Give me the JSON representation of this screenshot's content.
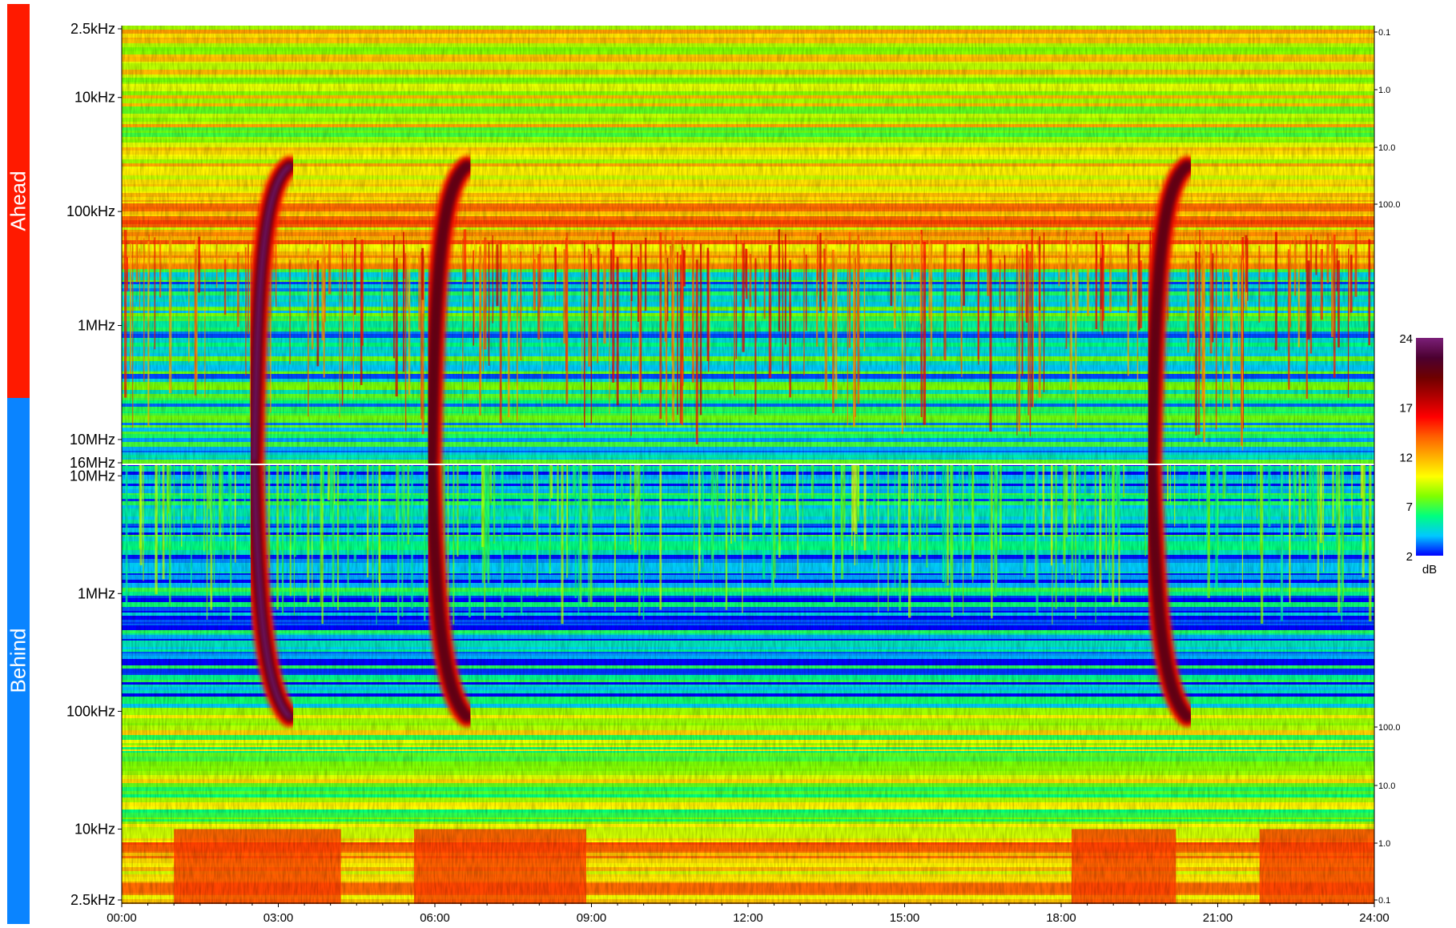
{
  "panels": {
    "ahead": {
      "label": "Ahead",
      "color": "#ff1a00"
    },
    "behind": {
      "label": "Behind",
      "color": "#0a84ff"
    }
  },
  "chart_data": {
    "type": "heatmap",
    "title": "",
    "xlabel": "",
    "ylabel": "",
    "x_ticks": [
      "00:00",
      "03:00",
      "06:00",
      "09:00",
      "12:00",
      "15:00",
      "18:00",
      "21:00",
      "24:00"
    ],
    "x_range_hours": [
      0,
      24
    ],
    "panels": [
      {
        "name": "Ahead",
        "y_ticks": [
          {
            "label": "2.5kHz",
            "value_hz": 2500
          },
          {
            "label": "10kHz",
            "value_hz": 10000
          },
          {
            "label": "100kHz",
            "value_hz": 100000
          },
          {
            "label": "1MHz",
            "value_hz": 1000000
          },
          {
            "label": "10MHz",
            "value_hz": 10000000
          },
          {
            "label": "16MHz",
            "value_hz": 16000000
          }
        ],
        "y_scale": "log",
        "y_direction": "frequency increases downward",
        "right_axis_ticks": [
          "0.1",
          "1.0",
          "10.0",
          "100.0"
        ]
      },
      {
        "name": "Behind",
        "y_ticks": [
          {
            "label": "10MHz",
            "value_hz": 10000000
          },
          {
            "label": "1MHz",
            "value_hz": 1000000
          },
          {
            "label": "100kHz",
            "value_hz": 100000
          },
          {
            "label": "10kHz",
            "value_hz": 10000
          },
          {
            "label": "2.5kHz",
            "value_hz": 2500
          }
        ],
        "y_scale": "log",
        "y_direction": "frequency increases upward",
        "right_axis_ticks": [
          "100.0",
          "10.0",
          "1.0",
          "0.1"
        ]
      }
    ],
    "colorbar": {
      "ticks": [
        "24",
        "17",
        "12",
        "7",
        "2"
      ],
      "unit": "dB",
      "range": [
        2,
        24
      ],
      "colors": [
        "#0000ff",
        "#00c8ff",
        "#00ff7f",
        "#7fff00",
        "#ffff00",
        "#ffb000",
        "#ff6000",
        "#ff0000",
        "#b40000",
        "#6e0000",
        "#4b0030",
        "#7b1f78"
      ]
    },
    "features": [
      {
        "start_time_h": 2.6,
        "peak_db": 24,
        "visible_in": [
          "Ahead",
          "Behind"
        ]
      },
      {
        "start_time_h": 6.0,
        "peak_db": 20,
        "visible_in": [
          "Ahead",
          "Behind"
        ]
      },
      {
        "start_time_h": 19.8,
        "peak_db": 20,
        "visible_in": [
          "Ahead",
          "Behind"
        ]
      }
    ]
  }
}
